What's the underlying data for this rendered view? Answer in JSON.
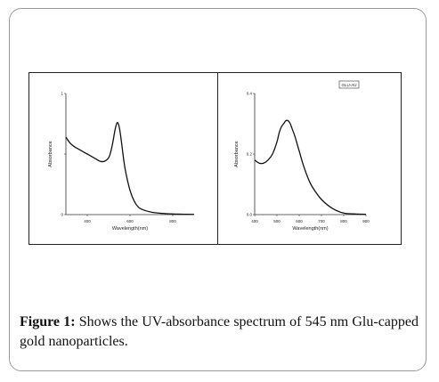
{
  "chart_data": [
    {
      "type": "line",
      "xlabel": "Wavelength(nm)",
      "ylabel": "Absorbance",
      "xlim": [
        300,
        900
      ],
      "ylim": [
        0,
        1
      ],
      "xticks": [
        400,
        600,
        800
      ],
      "xtick_labels": [
        "400",
        "600",
        "800"
      ],
      "yticks": [
        0,
        0.5,
        1
      ],
      "ytick_labels": [
        "0",
        "",
        "1"
      ],
      "grid": false,
      "x": [
        300,
        320,
        340,
        360,
        380,
        400,
        420,
        440,
        460,
        480,
        500,
        510,
        520,
        530,
        540,
        550,
        560,
        570,
        580,
        600,
        620,
        640,
        660,
        700,
        750,
        800,
        850,
        900
      ],
      "y": [
        0.64,
        0.59,
        0.56,
        0.54,
        0.52,
        0.5,
        0.48,
        0.46,
        0.44,
        0.44,
        0.47,
        0.52,
        0.6,
        0.7,
        0.76,
        0.72,
        0.6,
        0.46,
        0.35,
        0.2,
        0.11,
        0.06,
        0.04,
        0.02,
        0.01,
        0.005,
        0.003,
        0.002
      ]
    },
    {
      "type": "line",
      "legend": [
        "GLU-AU"
      ],
      "legend_position": "top-right",
      "xlabel": "Wavelength(nm)",
      "ylabel": "Absorbance",
      "xlim": [
        400,
        900
      ],
      "ylim": [
        0,
        0.4
      ],
      "xticks": [
        400,
        500,
        600,
        700,
        800,
        900
      ],
      "xtick_labels": [
        "400",
        "500",
        "600",
        "700",
        "800",
        "900"
      ],
      "yticks": [
        0,
        0.2,
        0.4
      ],
      "ytick_labels": [
        "0.0",
        "0.2",
        "0.4"
      ],
      "grid": false,
      "x": [
        400,
        420,
        440,
        460,
        480,
        500,
        510,
        520,
        530,
        540,
        550,
        560,
        570,
        580,
        600,
        620,
        640,
        660,
        700,
        750,
        800,
        850,
        900
      ],
      "y": [
        0.18,
        0.17,
        0.17,
        0.18,
        0.2,
        0.24,
        0.27,
        0.29,
        0.3,
        0.31,
        0.31,
        0.3,
        0.28,
        0.26,
        0.21,
        0.16,
        0.12,
        0.09,
        0.05,
        0.02,
        0.005,
        0.002,
        0.001
      ]
    }
  ],
  "caption": {
    "label": "Figure 1:",
    "text": " Shows the UV-absorbance spectrum of 545 nm Glu-capped gold nanoparticles."
  }
}
